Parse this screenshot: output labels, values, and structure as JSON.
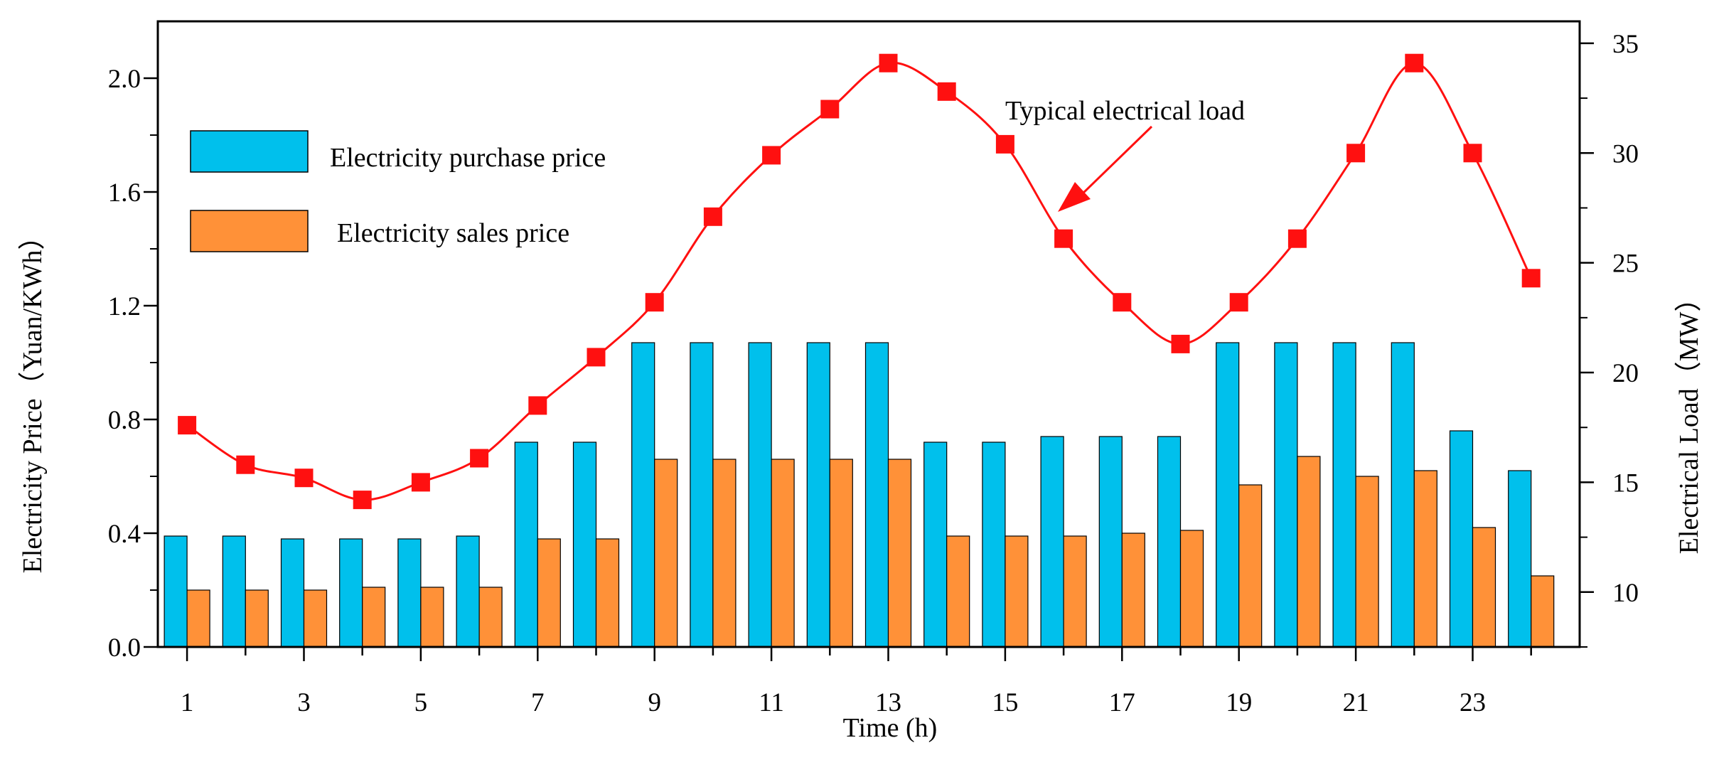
{
  "chart_data": {
    "type": "bar+line",
    "xlabel": "Time (h)",
    "ylabel_left": "Electricity Price（Yuan/KWh）",
    "ylabel_right": "Electrical Load（MW）",
    "x": [
      1,
      2,
      3,
      4,
      5,
      6,
      7,
      8,
      9,
      10,
      11,
      12,
      13,
      14,
      15,
      16,
      17,
      18,
      19,
      20,
      21,
      22,
      23,
      24
    ],
    "x_tick_labels": [
      "1",
      "3",
      "5",
      "7",
      "9",
      "11",
      "13",
      "15",
      "17",
      "19",
      "21",
      "23"
    ],
    "y_left_ticks": [
      "0.0",
      "0.4",
      "0.8",
      "1.2",
      "1.6",
      "2.0"
    ],
    "y_right_ticks": [
      "10",
      "15",
      "20",
      "25",
      "30",
      "35"
    ],
    "ylim_left": [
      0,
      2.2
    ],
    "ylim_right": [
      7.5,
      36
    ],
    "series": [
      {
        "name": "Electricity purchase price",
        "type": "bar",
        "color": "#00c0ec",
        "axis": "left",
        "values": [
          0.39,
          0.39,
          0.38,
          0.38,
          0.38,
          0.39,
          0.72,
          0.72,
          1.07,
          1.07,
          1.07,
          1.07,
          1.07,
          0.72,
          0.72,
          0.74,
          0.74,
          0.74,
          1.07,
          1.07,
          1.07,
          1.07,
          0.76,
          0.62
        ]
      },
      {
        "name": "Electricity sales price",
        "type": "bar",
        "color": "#ff9138",
        "axis": "left",
        "values": [
          0.2,
          0.2,
          0.2,
          0.21,
          0.21,
          0.21,
          0.38,
          0.38,
          0.66,
          0.66,
          0.66,
          0.66,
          0.66,
          0.39,
          0.39,
          0.39,
          0.4,
          0.41,
          0.57,
          0.67,
          0.6,
          0.62,
          0.42,
          0.25
        ]
      },
      {
        "name": "Typical electrical load",
        "type": "line",
        "color": "#ff1010",
        "axis": "right",
        "values": [
          17.6,
          15.8,
          15.2,
          14.2,
          15.0,
          16.1,
          18.5,
          20.7,
          23.2,
          27.1,
          29.9,
          32.0,
          34.1,
          32.8,
          30.4,
          26.1,
          23.2,
          21.3,
          23.2,
          26.1,
          30.0,
          34.1,
          30.0,
          24.3
        ]
      }
    ],
    "legend": [
      {
        "label": "Electricity purchase price",
        "color": "#00c0ec"
      },
      {
        "label": "Electricity sales price",
        "color": "#ff9138"
      }
    ],
    "annotation": {
      "text": "Typical electrical load",
      "target_series": "Typical electrical load"
    }
  }
}
